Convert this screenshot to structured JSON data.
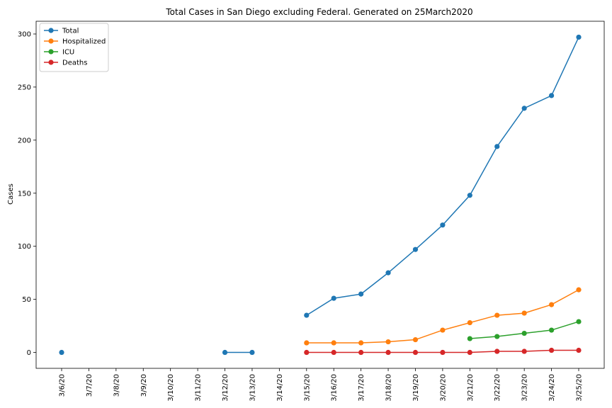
{
  "chart_data": {
    "type": "line",
    "title": "Total Cases in San Diego excluding Federal. Generated on 25March2020",
    "xlabel": "",
    "ylabel": "Cases",
    "ylim": [
      -15,
      312
    ],
    "yticks": [
      0,
      50,
      100,
      150,
      200,
      250,
      300
    ],
    "grid": false,
    "legend_position": "top-left",
    "categories": [
      "3/6/20",
      "3/7/20",
      "3/8/20",
      "3/9/20",
      "3/10/20",
      "3/11/20",
      "3/12/20",
      "3/13/20",
      "3/14/20",
      "3/15/20",
      "3/16/20",
      "3/17/20",
      "3/18/20",
      "3/19/20",
      "3/20/20",
      "3/21/20",
      "3/22/20",
      "3/23/20",
      "3/24/20",
      "3/25/20"
    ],
    "series": [
      {
        "name": "Total",
        "color": "#1f77b4",
        "values": [
          0,
          null,
          null,
          null,
          null,
          null,
          0,
          0,
          null,
          35,
          51,
          55,
          75,
          97,
          120,
          148,
          194,
          230,
          242,
          297
        ]
      },
      {
        "name": "Hospitalized",
        "color": "#ff7f0e",
        "values": [
          null,
          null,
          null,
          null,
          null,
          null,
          null,
          null,
          null,
          9,
          9,
          9,
          10,
          12,
          21,
          28,
          35,
          37,
          45,
          59
        ]
      },
      {
        "name": "ICU",
        "color": "#2ca02c",
        "values": [
          null,
          null,
          null,
          null,
          null,
          null,
          null,
          null,
          null,
          null,
          null,
          null,
          null,
          null,
          null,
          13,
          15,
          18,
          21,
          29
        ]
      },
      {
        "name": "Deaths",
        "color": "#d62728",
        "values": [
          null,
          null,
          null,
          null,
          null,
          null,
          null,
          null,
          null,
          0,
          0,
          0,
          0,
          0,
          0,
          0,
          1,
          1,
          2,
          2
        ]
      }
    ]
  }
}
